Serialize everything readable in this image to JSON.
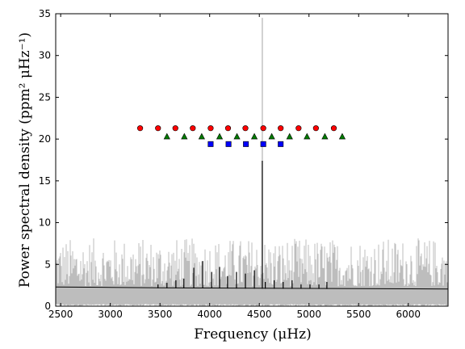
{
  "chart_data": {
    "type": "line",
    "title": "",
    "xlabel": "Frequency (μHz)",
    "ylabel": "Power spectral density (ppm² μHz⁻¹)",
    "xlim": [
      2450,
      6400
    ],
    "ylim": [
      0,
      35
    ],
    "x_ticks": [
      2500,
      3000,
      3500,
      4000,
      4500,
      5000,
      5500,
      6000
    ],
    "y_ticks": [
      0,
      5,
      10,
      15,
      20,
      25,
      30,
      35
    ],
    "grid": false,
    "legend": "none",
    "colors": {
      "raw_spectrum": "#bdbdbd",
      "smoothed_model": "#000000",
      "nu_max_line": "#bdbdbd",
      "circle_markers": "#ff0000",
      "triangle_markers": "#007a00",
      "square_markers": "#0000ff"
    },
    "series": [
      {
        "kind": "raw spectrum",
        "noise_floor_approx": 2.4,
        "noise_max_approx": 7.0
      },
      {
        "kind": "background",
        "x": [
          2450,
          3000,
          3500,
          4000,
          4500,
          5000,
          5500,
          6000,
          6400
        ],
        "y": [
          2.3,
          2.25,
          2.2,
          2.18,
          2.15,
          2.13,
          2.1,
          2.08,
          2.05
        ]
      },
      {
        "kind": "mode peaks",
        "x": [
          3480,
          3570,
          3660,
          3740,
          3840,
          3930,
          4020,
          4100,
          4180,
          4270,
          4360,
          4450,
          4530,
          4560,
          4650,
          4740,
          4830,
          4920,
          5010,
          5100,
          5180
        ],
        "y": [
          2.6,
          2.8,
          3.1,
          3.3,
          4.6,
          5.4,
          4.1,
          4.7,
          3.6,
          4.1,
          3.9,
          4.3,
          17.4,
          2.9,
          3.1,
          2.9,
          3.1,
          2.6,
          2.6,
          2.6,
          2.9
        ]
      },
      {
        "kind": "nu_max marker",
        "x": [
          4530,
          4530
        ],
        "y": [
          0,
          34.5
        ]
      },
      {
        "kind": "red circles",
        "marker": "circle",
        "x": [
          3300,
          3480,
          3655,
          3830,
          4010,
          4185,
          4360,
          4540,
          4715,
          4895,
          5070,
          5250
        ],
        "y": [
          21.3,
          21.3,
          21.3,
          21.3,
          21.3,
          21.3,
          21.3,
          21.3,
          21.3,
          21.3,
          21.3,
          21.3
        ]
      },
      {
        "kind": "green triangles",
        "marker": "triangle",
        "x": [
          3570,
          3745,
          3920,
          4100,
          4275,
          4450,
          4625,
          4805,
          4980,
          5160,
          5335
        ],
        "y": [
          20.3,
          20.3,
          20.3,
          20.3,
          20.3,
          20.3,
          20.3,
          20.3,
          20.3,
          20.3,
          20.3
        ]
      },
      {
        "kind": "blue squares",
        "marker": "square",
        "x": [
          4010,
          4190,
          4365,
          4540,
          4715
        ],
        "y": [
          19.4,
          19.4,
          19.4,
          19.4,
          19.4
        ]
      }
    ]
  }
}
